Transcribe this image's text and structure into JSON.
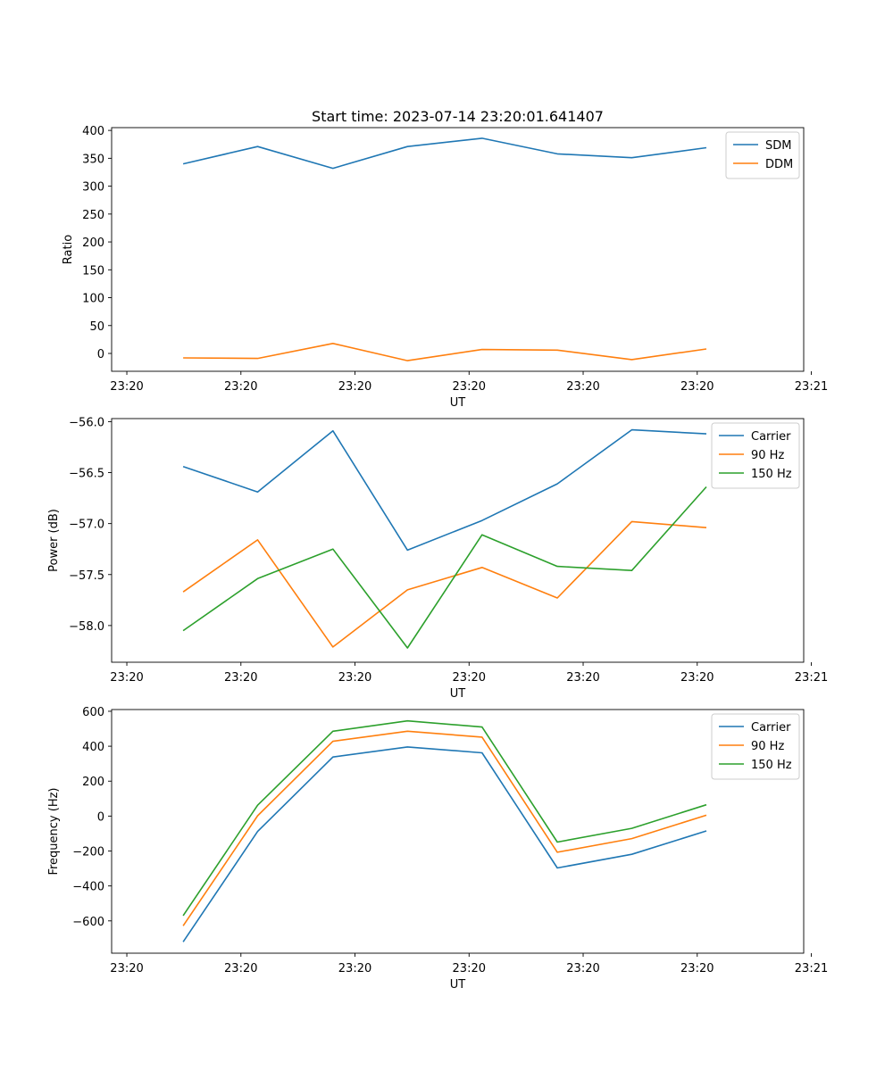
{
  "chart_data": [
    {
      "type": "line",
      "title": "Start time: 2023-07-14 23:20:01.641407",
      "xlabel": "UT",
      "ylabel": "Ratio",
      "ylim": [
        -32,
        405
      ],
      "yticks": [
        0,
        50,
        100,
        150,
        200,
        250,
        300,
        350,
        400
      ],
      "xlim": [
        -0.2,
        8.9
      ],
      "xticks": [
        0,
        1.5,
        3,
        4.5,
        6,
        7.5,
        9
      ],
      "xtick_labels": [
        "23:20",
        "23:20",
        "23:20",
        "23:20",
        "23:20",
        "23:20",
        "23:21"
      ],
      "x": [
        0.74,
        1.72,
        2.71,
        3.69,
        4.67,
        5.66,
        6.64,
        7.62
      ],
      "legend_position": "top-right",
      "series": [
        {
          "name": "SDM",
          "color": "#1f77b4",
          "values": [
            340,
            371,
            332,
            371,
            386,
            358,
            351,
            369
          ]
        },
        {
          "name": "DDM",
          "color": "#ff7f0e",
          "values": [
            -8,
            -9,
            18,
            -13,
            7,
            6,
            -11,
            8
          ]
        }
      ]
    },
    {
      "type": "line",
      "title": "",
      "xlabel": "UT",
      "ylabel": "Power (dB)",
      "ylim": [
        -58.36,
        -55.97
      ],
      "yticks": [
        -58.0,
        -57.5,
        -57.0,
        -56.5,
        -56.0
      ],
      "ytick_labels": [
        "−58.0",
        "−57.5",
        "−57.0",
        "−56.5",
        "−56.0"
      ],
      "xlim": [
        -0.2,
        8.9
      ],
      "xticks": [
        0,
        1.5,
        3,
        4.5,
        6,
        7.5,
        9
      ],
      "xtick_labels": [
        "23:20",
        "23:20",
        "23:20",
        "23:20",
        "23:20",
        "23:20",
        "23:21"
      ],
      "x": [
        0.74,
        1.72,
        2.71,
        3.69,
        4.67,
        5.66,
        6.64,
        7.62
      ],
      "legend_position": "top-right",
      "series": [
        {
          "name": "Carrier",
          "color": "#1f77b4",
          "values": [
            -56.44,
            -56.69,
            -56.09,
            -57.26,
            -56.97,
            -56.61,
            -56.08,
            -56.12
          ]
        },
        {
          "name": "90 Hz",
          "color": "#ff7f0e",
          "values": [
            -57.67,
            -57.16,
            -58.21,
            -57.65,
            -57.43,
            -57.73,
            -56.98,
            -57.04
          ]
        },
        {
          "name": "150 Hz",
          "color": "#2ca02c",
          "values": [
            -58.05,
            -57.54,
            -57.25,
            -58.22,
            -57.11,
            -57.42,
            -57.46,
            -56.64
          ]
        }
      ]
    },
    {
      "type": "line",
      "title": "",
      "xlabel": "UT",
      "ylabel": "Frequency (Hz)",
      "ylim": [
        -785,
        610
      ],
      "yticks": [
        -600,
        -400,
        -200,
        0,
        200,
        400,
        600
      ],
      "ytick_labels": [
        "−600",
        "−400",
        "−200",
        "0",
        "200",
        "400",
        "600"
      ],
      "xlim": [
        -0.2,
        8.9
      ],
      "xticks": [
        0,
        1.5,
        3,
        4.5,
        6,
        7.5,
        9
      ],
      "xtick_labels": [
        "23:20",
        "23:20",
        "23:20",
        "23:20",
        "23:20",
        "23:20",
        "23:21"
      ],
      "x": [
        0.74,
        1.72,
        2.71,
        3.69,
        4.67,
        5.66,
        6.64,
        7.62
      ],
      "legend_position": "top-right",
      "series": [
        {
          "name": "Carrier",
          "color": "#1f77b4",
          "values": [
            -720,
            -88,
            338,
            396,
            362,
            -297,
            -219,
            -85
          ]
        },
        {
          "name": "90 Hz",
          "color": "#ff7f0e",
          "values": [
            -628,
            2,
            428,
            486,
            452,
            -207,
            -129,
            5
          ]
        },
        {
          "name": "150 Hz",
          "color": "#2ca02c",
          "values": [
            -570,
            62,
            486,
            545,
            510,
            -149,
            -70,
            65
          ]
        }
      ]
    }
  ]
}
